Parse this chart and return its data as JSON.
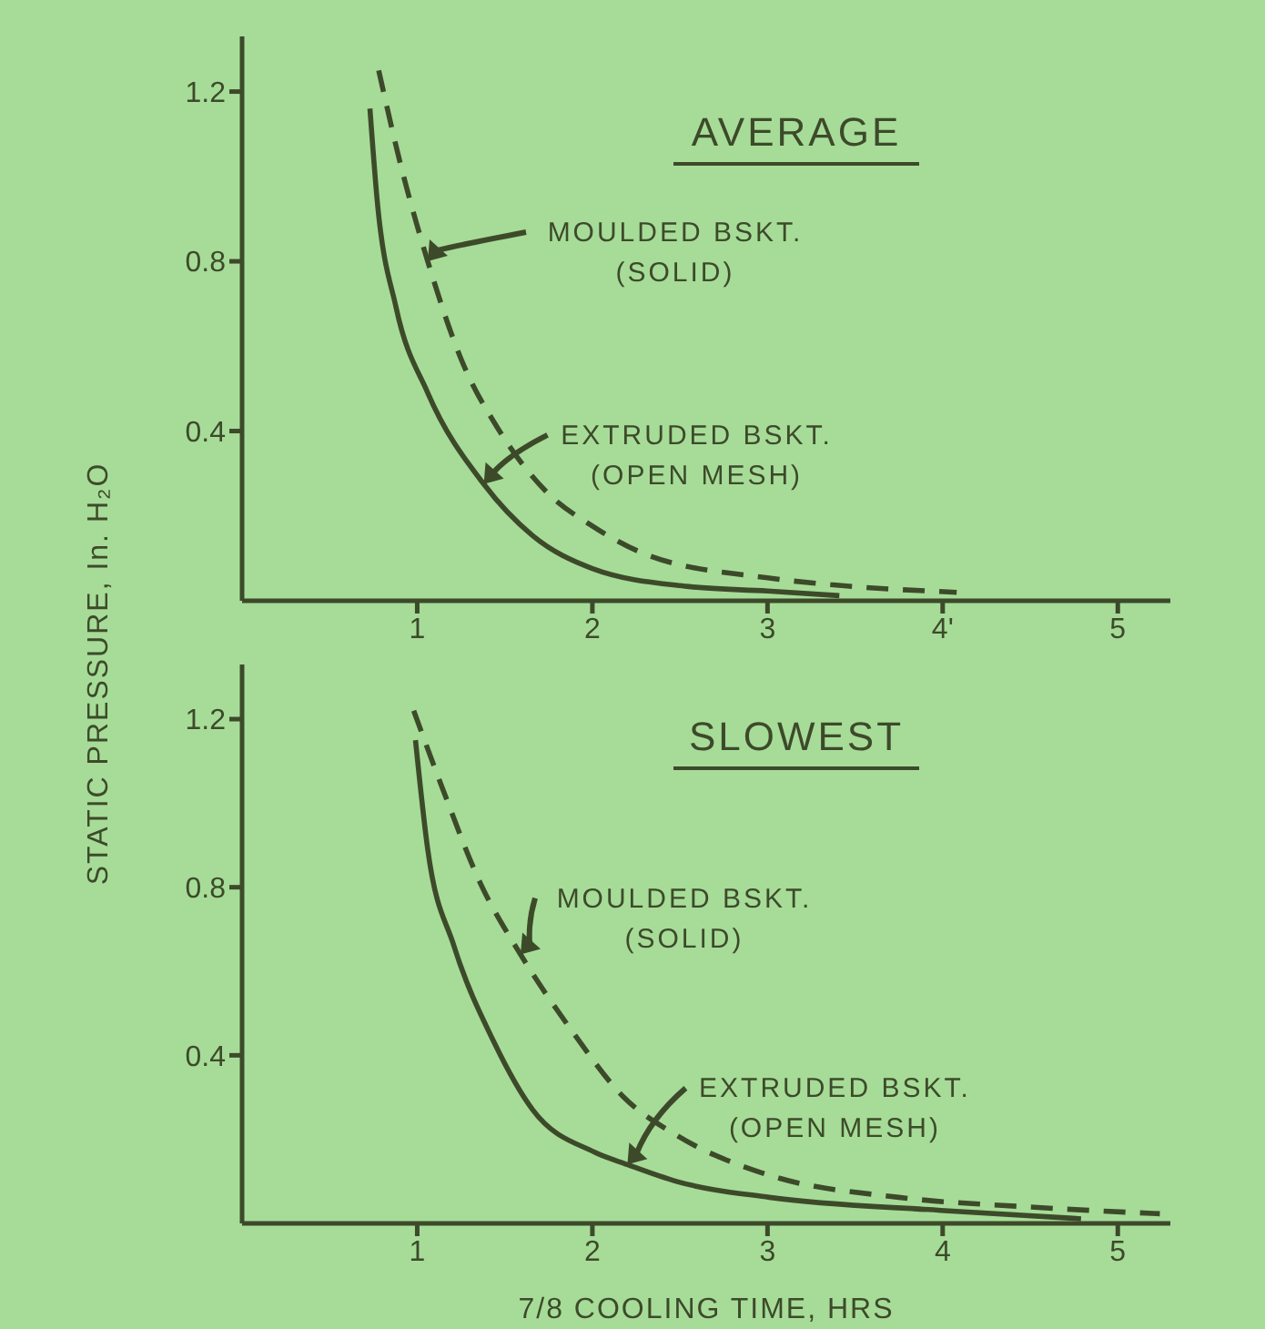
{
  "chart_data": [
    {
      "type": "line",
      "title": "AVERAGE",
      "ylabel": "STATIC PRESSURE, In. H₂O",
      "xlim": [
        0,
        5.3
      ],
      "ylim": [
        0,
        1.33
      ],
      "xticks": [
        1,
        2,
        3,
        {
          "value": 4,
          "label": "4'"
        },
        5
      ],
      "yticks": [
        0.4,
        0.8,
        1.2
      ],
      "grid": false,
      "legend": false,
      "marker": "none",
      "series": [
        {
          "color": "#3d4a2a",
          "line_style": "solid",
          "x": [
            0.73,
            0.77,
            0.88,
            1.06,
            1.38,
            1.66,
            2.0,
            2.54,
            3.0,
            3.41
          ],
          "values": [
            1.16,
            0.95,
            0.69,
            0.49,
            0.275,
            0.153,
            0.076,
            0.034,
            0.023,
            0.012
          ]
        },
        {
          "color": "#3d4a2a",
          "line_style": "dashed",
          "x": [
            0.78,
            0.91,
            1.06,
            1.25,
            1.47,
            1.73,
            2.0,
            2.32,
            3.0,
            3.36,
            4.08
          ],
          "values": [
            1.25,
            1.02,
            0.8,
            0.57,
            0.4,
            0.26,
            0.176,
            0.107,
            0.054,
            0.038,
            0.02
          ]
        }
      ],
      "annotations": [
        {
          "text": "MOULDED BSKT.\n(SOLID)",
          "x": 1.06,
          "y": 0.8
        },
        {
          "text": "EXTRUDED BSKT.\n(OPEN MESH)",
          "x": 1.38,
          "y": 0.275
        }
      ]
    },
    {
      "type": "line",
      "title": "SLOWEST",
      "xlabel": "7/8 COOLING TIME, HRS",
      "xlim": [
        0,
        5.3
      ],
      "ylim": [
        0,
        1.33
      ],
      "xticks": [
        1,
        2,
        3,
        4,
        5
      ],
      "yticks": [
        0.4,
        0.8,
        1.2
      ],
      "grid": false,
      "legend": false,
      "marker": "none",
      "series": [
        {
          "color": "#3d4a2a",
          "line_style": "solid",
          "x": [
            0.99,
            1.06,
            1.21,
            1.44,
            1.66,
            2.01,
            2.2,
            2.48,
            3.01,
            3.99,
            4.79
          ],
          "values": [
            1.15,
            0.89,
            0.66,
            0.43,
            0.27,
            0.17,
            0.14,
            0.1,
            0.062,
            0.031,
            0.011
          ]
        },
        {
          "color": "#3d4a2a",
          "line_style": "dashed",
          "x": [
            0.98,
            1.14,
            1.36,
            1.59,
            1.88,
            2.18,
            2.48,
            3.0,
            3.75,
            4.5,
            5.24
          ],
          "values": [
            1.22,
            1.04,
            0.81,
            0.64,
            0.46,
            0.3,
            0.21,
            0.116,
            0.062,
            0.039,
            0.023
          ]
        }
      ],
      "annotations": [
        {
          "text": "MOULDED BSKT.\n(SOLID)",
          "x": 1.59,
          "y": 0.64
        },
        {
          "text": "EXTRUDED BSKT.\n(OPEN MESH)",
          "x": 2.2,
          "y": 0.14
        }
      ]
    }
  ]
}
